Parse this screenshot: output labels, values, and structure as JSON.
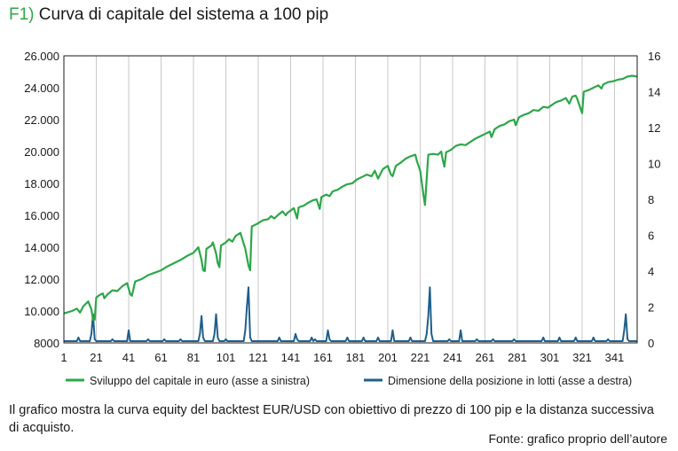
{
  "header": {
    "figure_label": "F1)",
    "title": "Curva di capitale del sistema a 100 pip"
  },
  "caption": "Il grafico mostra la curva equity del backtest EUR/USD con obiettivo di prezzo di 100 pip e la distanza successiva di acquisto.",
  "source": "Fonte: grafico proprio dell’autore",
  "chart_data": {
    "type": "line",
    "x_range": [
      1,
      355
    ],
    "x_ticks": [
      1,
      21,
      41,
      61,
      81,
      101,
      121,
      141,
      161,
      181,
      201,
      221,
      241,
      261,
      281,
      301,
      321,
      341
    ],
    "ylim_left": [
      8000,
      26000
    ],
    "y_ticks_left": [
      8000,
      10000,
      12000,
      14000,
      16000,
      18000,
      20000,
      22000,
      24000,
      26000
    ],
    "y_tick_labels_left": [
      "8000",
      "10.000",
      "12.000",
      "14.000",
      "16.000",
      "18.000",
      "20.000",
      "22.000",
      "24.000",
      "26.000"
    ],
    "ylim_right": [
      0,
      16
    ],
    "y_ticks_right": [
      0,
      2,
      4,
      6,
      8,
      10,
      12,
      14,
      16
    ],
    "grid": "vertical",
    "legend_position": "bottom",
    "colors": {
      "equity": "#2ea64a",
      "lots": "#1f5f8b"
    },
    "series": [
      {
        "name": "Sviluppo del capitale in euro (asse a sinistra)",
        "axis": "left",
        "points": [
          [
            1,
            9850
          ],
          [
            6,
            10000
          ],
          [
            9,
            10150
          ],
          [
            11,
            9900
          ],
          [
            13,
            10300
          ],
          [
            16,
            10600
          ],
          [
            18,
            10100
          ],
          [
            19,
            9450
          ],
          [
            20,
            9450
          ],
          [
            21,
            10850
          ],
          [
            23,
            11000
          ],
          [
            25,
            11100
          ],
          [
            26,
            10800
          ],
          [
            28,
            11050
          ],
          [
            31,
            11300
          ],
          [
            34,
            11250
          ],
          [
            37,
            11550
          ],
          [
            40,
            11750
          ],
          [
            42,
            11050
          ],
          [
            43,
            10950
          ],
          [
            45,
            11850
          ],
          [
            49,
            12000
          ],
          [
            53,
            12250
          ],
          [
            57,
            12400
          ],
          [
            61,
            12550
          ],
          [
            65,
            12800
          ],
          [
            69,
            13000
          ],
          [
            73,
            13200
          ],
          [
            77,
            13450
          ],
          [
            81,
            13650
          ],
          [
            84,
            14000
          ],
          [
            86,
            13200
          ],
          [
            87,
            12550
          ],
          [
            88,
            12500
          ],
          [
            89,
            13900
          ],
          [
            92,
            14100
          ],
          [
            93,
            14300
          ],
          [
            95,
            13600
          ],
          [
            96,
            13000
          ],
          [
            97,
            12750
          ],
          [
            98,
            14100
          ],
          [
            101,
            14300
          ],
          [
            103,
            14500
          ],
          [
            105,
            14350
          ],
          [
            107,
            14700
          ],
          [
            110,
            14900
          ],
          [
            113,
            13900
          ],
          [
            115,
            12850
          ],
          [
            116,
            12550
          ],
          [
            117,
            15300
          ],
          [
            120,
            15450
          ],
          [
            124,
            15700
          ],
          [
            127,
            15750
          ],
          [
            129,
            15950
          ],
          [
            131,
            15800
          ],
          [
            133,
            16000
          ],
          [
            136,
            16250
          ],
          [
            138,
            16000
          ],
          [
            139,
            16150
          ],
          [
            141,
            16300
          ],
          [
            143,
            16450
          ],
          [
            145,
            15800
          ],
          [
            146,
            16500
          ],
          [
            149,
            16600
          ],
          [
            152,
            16800
          ],
          [
            155,
            16950
          ],
          [
            157,
            17000
          ],
          [
            159,
            16400
          ],
          [
            160,
            17150
          ],
          [
            163,
            17300
          ],
          [
            165,
            17200
          ],
          [
            167,
            17500
          ],
          [
            170,
            17600
          ],
          [
            173,
            17800
          ],
          [
            176,
            17950
          ],
          [
            179,
            18000
          ],
          [
            182,
            18250
          ],
          [
            185,
            18400
          ],
          [
            188,
            18550
          ],
          [
            191,
            18450
          ],
          [
            193,
            18800
          ],
          [
            195,
            18300
          ],
          [
            196,
            18500
          ],
          [
            198,
            18900
          ],
          [
            201,
            19100
          ],
          [
            203,
            18550
          ],
          [
            204,
            18450
          ],
          [
            206,
            19100
          ],
          [
            209,
            19300
          ],
          [
            212,
            19550
          ],
          [
            215,
            19700
          ],
          [
            218,
            19800
          ],
          [
            219,
            19400
          ],
          [
            221,
            18800
          ],
          [
            223,
            17300
          ],
          [
            224,
            16650
          ],
          [
            226,
            19800
          ],
          [
            229,
            19850
          ],
          [
            232,
            19800
          ],
          [
            234,
            20000
          ],
          [
            235,
            19450
          ],
          [
            236,
            19050
          ],
          [
            237,
            19950
          ],
          [
            240,
            20100
          ],
          [
            243,
            20350
          ],
          [
            246,
            20450
          ],
          [
            249,
            20400
          ],
          [
            252,
            20600
          ],
          [
            255,
            20800
          ],
          [
            258,
            20950
          ],
          [
            261,
            21100
          ],
          [
            264,
            21250
          ],
          [
            265,
            20900
          ],
          [
            267,
            21400
          ],
          [
            270,
            21600
          ],
          [
            273,
            21700
          ],
          [
            276,
            21900
          ],
          [
            279,
            22000
          ],
          [
            280,
            21650
          ],
          [
            282,
            22150
          ],
          [
            285,
            22300
          ],
          [
            288,
            22400
          ],
          [
            291,
            22600
          ],
          [
            294,
            22550
          ],
          [
            297,
            22800
          ],
          [
            300,
            22750
          ],
          [
            302,
            22900
          ],
          [
            305,
            23100
          ],
          [
            308,
            23200
          ],
          [
            311,
            23350
          ],
          [
            313,
            23000
          ],
          [
            315,
            23450
          ],
          [
            317,
            23500
          ],
          [
            318,
            23300
          ],
          [
            320,
            22700
          ],
          [
            321,
            22400
          ],
          [
            322,
            23750
          ],
          [
            325,
            23850
          ],
          [
            328,
            24000
          ],
          [
            331,
            24150
          ],
          [
            333,
            23950
          ],
          [
            334,
            24200
          ],
          [
            337,
            24350
          ],
          [
            340,
            24400
          ],
          [
            343,
            24500
          ],
          [
            346,
            24550
          ],
          [
            349,
            24700
          ],
          [
            352,
            24750
          ],
          [
            355,
            24700
          ]
        ]
      },
      {
        "name": "Dimensione della posizione in lotti (asse a destra)",
        "axis": "right",
        "points": [
          [
            1,
            0.1
          ],
          [
            9,
            0.1
          ],
          [
            10,
            0.3
          ],
          [
            11,
            0.1
          ],
          [
            17,
            0.1
          ],
          [
            18,
            0.5
          ],
          [
            19,
            1.6
          ],
          [
            20,
            0.2
          ],
          [
            21,
            0.1
          ],
          [
            30,
            0.1
          ],
          [
            31,
            0.2
          ],
          [
            32,
            0.1
          ],
          [
            40,
            0.1
          ],
          [
            41,
            0.7
          ],
          [
            42,
            0.1
          ],
          [
            52,
            0.1
          ],
          [
            53,
            0.2
          ],
          [
            54,
            0.1
          ],
          [
            62,
            0.1
          ],
          [
            63,
            0.2
          ],
          [
            64,
            0.1
          ],
          [
            72,
            0.1
          ],
          [
            73,
            0.2
          ],
          [
            74,
            0.1
          ],
          [
            84,
            0.1
          ],
          [
            85,
            0.5
          ],
          [
            86,
            1.5
          ],
          [
            87,
            0.3
          ],
          [
            88,
            0.1
          ],
          [
            93,
            0.1
          ],
          [
            94,
            0.5
          ],
          [
            95,
            1.6
          ],
          [
            96,
            0.3
          ],
          [
            97,
            0.1
          ],
          [
            100,
            0.1
          ],
          [
            101,
            0.2
          ],
          [
            102,
            0.1
          ],
          [
            112,
            0.1
          ],
          [
            113,
            0.7
          ],
          [
            114,
            2.0
          ],
          [
            115,
            3.1
          ],
          [
            116,
            0.3
          ],
          [
            117,
            0.1
          ],
          [
            133,
            0.1
          ],
          [
            134,
            0.3
          ],
          [
            135,
            0.1
          ],
          [
            143,
            0.1
          ],
          [
            144,
            0.5
          ],
          [
            145,
            0.2
          ],
          [
            146,
            0.1
          ],
          [
            153,
            0.1
          ],
          [
            154,
            0.3
          ],
          [
            155,
            0.1
          ],
          [
            156,
            0.2
          ],
          [
            157,
            0.1
          ],
          [
            163,
            0.1
          ],
          [
            164,
            0.7
          ],
          [
            165,
            0.2
          ],
          [
            166,
            0.1
          ],
          [
            175,
            0.1
          ],
          [
            176,
            0.3
          ],
          [
            177,
            0.1
          ],
          [
            185,
            0.1
          ],
          [
            186,
            0.3
          ],
          [
            187,
            0.1
          ],
          [
            194,
            0.1
          ],
          [
            195,
            0.3
          ],
          [
            196,
            0.1
          ],
          [
            203,
            0.1
          ],
          [
            204,
            0.7
          ],
          [
            205,
            0.1
          ],
          [
            214,
            0.1
          ],
          [
            215,
            0.3
          ],
          [
            216,
            0.1
          ],
          [
            224,
            0.1
          ],
          [
            225,
            0.5
          ],
          [
            226,
            1.5
          ],
          [
            227,
            3.1
          ],
          [
            228,
            0.5
          ],
          [
            229,
            0.1
          ],
          [
            238,
            0.1
          ],
          [
            239,
            0.2
          ],
          [
            240,
            0.1
          ],
          [
            245,
            0.1
          ],
          [
            246,
            0.7
          ],
          [
            247,
            0.1
          ],
          [
            255,
            0.1
          ],
          [
            256,
            0.2
          ],
          [
            257,
            0.1
          ],
          [
            265,
            0.1
          ],
          [
            266,
            0.2
          ],
          [
            267,
            0.1
          ],
          [
            278,
            0.1
          ],
          [
            279,
            0.2
          ],
          [
            280,
            0.1
          ],
          [
            296,
            0.1
          ],
          [
            297,
            0.3
          ],
          [
            298,
            0.1
          ],
          [
            306,
            0.1
          ],
          [
            307,
            0.3
          ],
          [
            308,
            0.1
          ],
          [
            316,
            0.1
          ],
          [
            317,
            0.3
          ],
          [
            318,
            0.1
          ],
          [
            327,
            0.1
          ],
          [
            328,
            0.3
          ],
          [
            329,
            0.1
          ],
          [
            336,
            0.1
          ],
          [
            337,
            0.2
          ],
          [
            338,
            0.1
          ],
          [
            346,
            0.1
          ],
          [
            347,
            0.7
          ],
          [
            348,
            1.6
          ],
          [
            349,
            0.2
          ],
          [
            350,
            0.1
          ],
          [
            355,
            0.1
          ]
        ]
      }
    ]
  }
}
